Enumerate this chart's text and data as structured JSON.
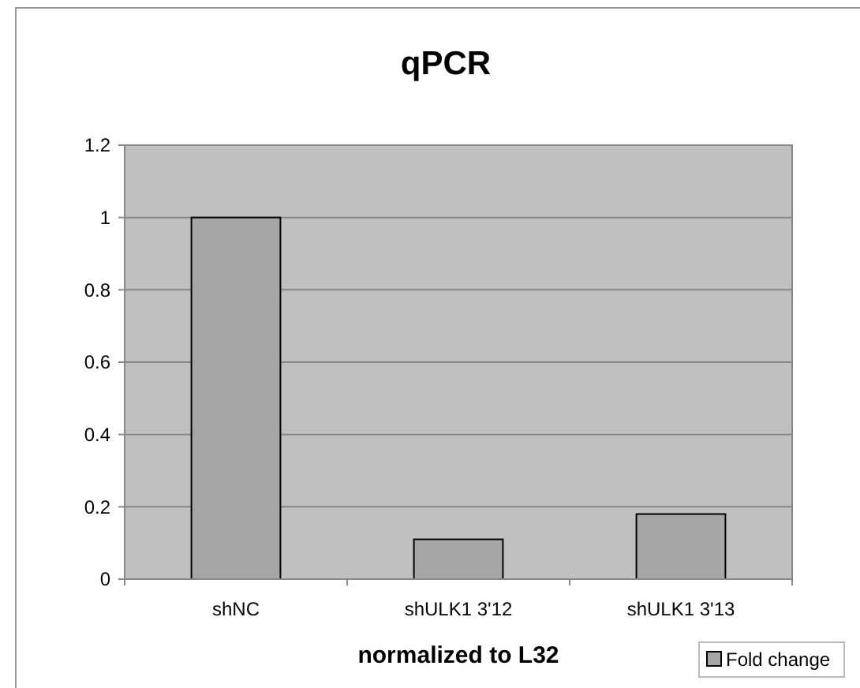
{
  "chart_data": {
    "type": "bar",
    "title": "qPCR",
    "xlabel": "normalized to L32",
    "categories": [
      "shNC",
      "shULK1 3'12",
      "shULK1 3'13"
    ],
    "series": [
      {
        "name": "Fold change",
        "color": "#a6a6a6",
        "values": [
          1,
          0.11,
          0.18
        ]
      }
    ],
    "ylim": [
      0,
      1.2
    ],
    "yticks": [
      0,
      0.2,
      0.4,
      0.6,
      0.8,
      1,
      1.2
    ],
    "grid": "y",
    "legend": "bottom right"
  }
}
